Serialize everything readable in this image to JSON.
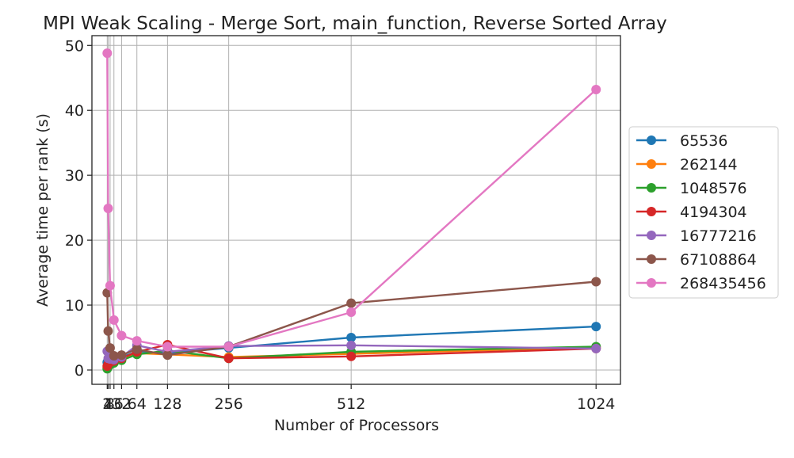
{
  "chart_data": {
    "type": "line",
    "title": "MPI Weak Scaling - Merge Sort, main_function, Reverse Sorted Array",
    "xlabel": "Number of Processors",
    "ylabel": "Average time per rank (s)",
    "x": [
      2,
      4,
      8,
      16,
      32,
      64,
      128,
      256,
      512,
      1024
    ],
    "x_tick_labels": [
      "2",
      "4",
      "8",
      "16",
      "32",
      "64",
      "128",
      "256",
      "512",
      "1024"
    ],
    "xlim": [
      -30,
      1075
    ],
    "ylim": [
      -2.2,
      51.5
    ],
    "y_ticks": [
      0,
      10,
      20,
      30,
      40,
      50
    ],
    "grid": true,
    "legend_position": "right, outside plot",
    "series": [
      {
        "name": "65536",
        "color": "#1f77b4",
        "values": [
          1.2,
          1.5,
          1.6,
          1.7,
          2.0,
          2.8,
          2.6,
          3.4,
          5.0,
          6.7
        ]
      },
      {
        "name": "262144",
        "color": "#ff7f0e",
        "values": [
          0.4,
          0.7,
          0.9,
          1.3,
          1.6,
          2.6,
          2.4,
          2.0,
          2.5,
          3.5
        ]
      },
      {
        "name": "1048576",
        "color": "#2ca02c",
        "values": [
          0.2,
          0.5,
          0.8,
          1.1,
          1.5,
          2.4,
          3.0,
          1.8,
          2.8,
          3.6
        ]
      },
      {
        "name": "4194304",
        "color": "#d62728",
        "values": [
          0.6,
          0.9,
          1.2,
          1.4,
          1.8,
          2.8,
          3.9,
          1.8,
          2.1,
          3.3
        ]
      },
      {
        "name": "16777216",
        "color": "#9467bd",
        "values": [
          2.9,
          1.8,
          1.7,
          1.6,
          2.0,
          3.8,
          2.8,
          3.7,
          3.8,
          3.3
        ]
      },
      {
        "name": "67108864",
        "color": "#8c564b",
        "values": [
          11.9,
          6.0,
          3.4,
          2.2,
          2.3,
          3.2,
          2.3,
          3.6,
          10.3,
          13.6
        ]
      },
      {
        "name": "268435456",
        "color": "#e377c2",
        "values": [
          48.8,
          24.9,
          13.0,
          7.7,
          5.3,
          4.5,
          3.6,
          3.6,
          8.9,
          43.2
        ]
      }
    ]
  }
}
